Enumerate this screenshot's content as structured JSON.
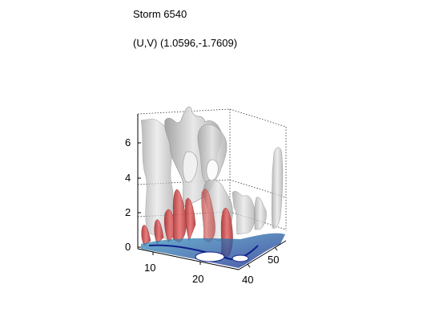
{
  "figure": {
    "title": "Storm 6540",
    "subtitle": "(U,V) (1.0596,-1.7609)"
  },
  "axes": {
    "z_ticks": [
      "0",
      "2",
      "4",
      "6"
    ],
    "x_ticks": [
      "10",
      "20"
    ],
    "y_ticks": [
      "40",
      "50"
    ]
  },
  "colors": {
    "grey_surface": "#c8c8c8",
    "red_surface": "#d04848",
    "base_cyan": "#58b8c8",
    "base_navy": "#10208a"
  }
}
